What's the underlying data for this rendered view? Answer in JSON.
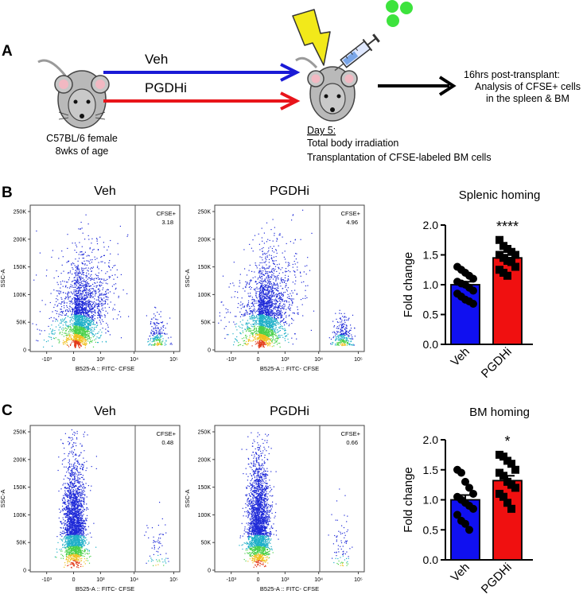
{
  "panel_labels": {
    "a": "A",
    "b": "B",
    "c": "C"
  },
  "schematic": {
    "arrow_veh_label": "Veh",
    "arrow_pgdhi_label": "PGDHi",
    "mouse_line1": "C57BL/6 female",
    "mouse_line2": "8wks of age",
    "day_label": "Day 5:",
    "step1": "Total body irradiation",
    "step2": "Transplantation of CFSE-labeled BM cells",
    "outcome_line1": "16hrs post-transplant:",
    "outcome_line2": "Analysis of CFSE+ cells",
    "outcome_line3": "in the spleen & BM",
    "colors": {
      "veh_arrow": "#1a1ad6",
      "pgdhi_arrow": "#e8141a",
      "bolt": "#f2e91a",
      "cells": "#3de33d",
      "mouse": "#b9b9b9"
    }
  },
  "flow_axis": {
    "y_label": "SSC-A",
    "x_label": "B525-A :: FITC- CFSE",
    "y_ticks": [
      "250K",
      "200K",
      "150K",
      "100K",
      "50K",
      "0"
    ],
    "x_ticks": [
      "-10³",
      "0",
      "10³",
      "10⁴",
      "10⁵"
    ],
    "gate_label": "CFSE+"
  },
  "flow_plots": {
    "b_veh": {
      "title": "Veh",
      "gate_value": "3.18"
    },
    "b_pgdhi": {
      "title": "PGDHi",
      "gate_value": "4.96"
    },
    "c_veh": {
      "title": "Veh",
      "gate_value": "0.48"
    },
    "c_pgdhi": {
      "title": "PGDHi",
      "gate_value": "0.66"
    }
  },
  "chart_data": [
    {
      "type": "bar",
      "title": "Splenic homing",
      "ylabel": "Fold change",
      "xlabel": "",
      "categories": [
        "Veh",
        "PGDHi"
      ],
      "values": [
        1.0,
        1.45
      ],
      "error": [
        0.05,
        0.05
      ],
      "ylim": [
        0,
        2.0
      ],
      "y_ticks": [
        "0.0",
        "0.5",
        "1.0",
        "1.5",
        "2.0"
      ],
      "significance": "****",
      "bar_colors": [
        "#1010f0",
        "#f01010"
      ],
      "points": [
        [
          1.3,
          1.25,
          1.2,
          1.15,
          1.1,
          1.05,
          1.02,
          1.0,
          0.95,
          0.9,
          0.85,
          0.8,
          0.75,
          0.72,
          0.68
        ],
        [
          1.75,
          1.65,
          1.6,
          1.55,
          1.5,
          1.5,
          1.45,
          1.4,
          1.38,
          1.3,
          1.25,
          1.2,
          1.15
        ]
      ]
    },
    {
      "type": "bar",
      "title": "BM homing",
      "ylabel": "Fold change",
      "xlabel": "",
      "categories": [
        "Veh",
        "PGDHi"
      ],
      "values": [
        1.0,
        1.32
      ],
      "error": [
        0.08,
        0.08
      ],
      "ylim": [
        0,
        2.0
      ],
      "y_ticks": [
        "0.0",
        "0.5",
        "1.0",
        "1.5",
        "2.0"
      ],
      "significance": "*",
      "bar_colors": [
        "#1010f0",
        "#f01010"
      ],
      "points": [
        [
          1.5,
          1.45,
          1.3,
          1.2,
          1.1,
          1.05,
          1.0,
          0.95,
          0.9,
          0.85,
          0.75,
          0.65,
          0.6,
          0.5
        ],
        [
          1.75,
          1.72,
          1.65,
          1.6,
          1.5,
          1.45,
          1.4,
          1.3,
          1.25,
          1.2,
          1.1,
          1.05,
          0.95,
          0.85
        ]
      ]
    }
  ]
}
